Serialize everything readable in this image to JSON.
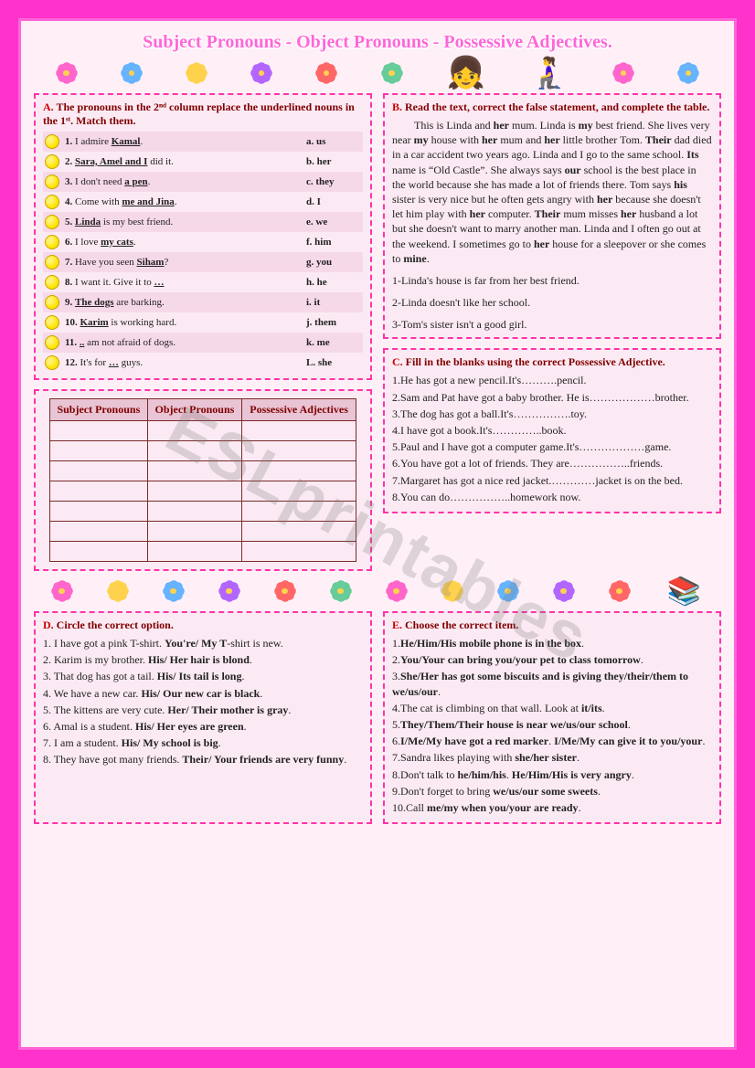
{
  "title": "Subject Pronouns - Object Pronouns - Possessive Adjectives.",
  "watermark": "ESLprintables",
  "flower_colors": [
    "f-pink",
    "f-blue",
    "f-yellow",
    "f-purple",
    "f-red",
    "f-pink",
    "f-green",
    "f-blue",
    "f-yellow",
    "f-purple"
  ],
  "sectionA": {
    "letter": "A.",
    "head": "The pronouns in the 2ⁿᵈ column replace the underlined nouns in the 1ˢᵗ. Match them.",
    "rows": [
      {
        "n": "1.",
        "left_pre": "I admire ",
        "u": "Kamal",
        "left_post": ".",
        "right": "a. us"
      },
      {
        "n": "2.",
        "left_pre": "",
        "u": "Sara, Amel and I",
        "left_post": " did it.",
        "right": "b. her"
      },
      {
        "n": "3.",
        "left_pre": "I don't need ",
        "u": "a pen",
        "left_post": ".",
        "right": "c. they"
      },
      {
        "n": "4.",
        "left_pre": "Come with ",
        "u": "me and Jina",
        "left_post": ".",
        "right": "d. I"
      },
      {
        "n": "5.",
        "left_pre": "",
        "u": "Linda",
        "left_post": " is my best friend.",
        "right": "e. we"
      },
      {
        "n": "6.",
        "left_pre": "I love ",
        "u": "my cats",
        "left_post": ".",
        "right": "f. him"
      },
      {
        "n": "7.",
        "left_pre": "Have you seen ",
        "u": "Siham",
        "left_post": "?",
        "right": "g. you"
      },
      {
        "n": "8.",
        "left_pre": "I want it. Give it to ",
        "u": "…",
        "left_post": "",
        "right": "h. he"
      },
      {
        "n": "9.",
        "left_pre": "",
        "u": "The dogs",
        "left_post": " are barking.",
        "right": "i. it"
      },
      {
        "n": "10.",
        "left_pre": "",
        "u": "Karim",
        "left_post": " is working hard.",
        "right": "j. them"
      },
      {
        "n": "11.",
        "left_pre": "",
        "u": "..",
        "left_post": " am not afraid of dogs.",
        "right": "k. me"
      },
      {
        "n": "12.",
        "left_pre": "It's for ",
        "u": "…",
        "left_post": " guys.",
        "right": "L. she"
      }
    ]
  },
  "pron_table": {
    "headers": [
      "Subject Pronouns",
      "Object Pronouns",
      "Possessive Adjectives"
    ],
    "empty_rows": 7
  },
  "sectionB": {
    "letter": "B.",
    "head": "Read the text, correct the false statement, and complete the table.",
    "passage": "This is Linda and her mum. Linda is my best friend. She lives very near my house with her mum and her little brother Tom. Their dad died in a car accident two years ago. Linda and I go to the same school. Its name is “Old Castle”. She always says our school is the best place in the world because she has made a lot of friends there. Tom says his sister is very nice but he often gets angry with her because she doesn't let him play with her computer. Their mum misses her husband a lot but she doesn't want to marry another man. Linda and I often go out at the weekend. I sometimes go to her house for a sleepover or she comes to mine.",
    "q1": "1-Linda's house is far from her best friend.",
    "q2": "2-Linda doesn't like her school.",
    "q3": "3-Tom's sister isn't a good girl."
  },
  "sectionC": {
    "letter": "C.",
    "head": "Fill in the blanks using the correct Possessive Adjective.",
    "items": [
      "1.He has got a new pencil.It's……….pencil.",
      "2.Sam and Pat have got a baby brother. He is………………brother.",
      "3.The dog has got a ball.It's…………….toy.",
      "4.I have got a book.It's…………..book.",
      "5.Paul and I have got a computer game.It's………………game.",
      "6.You have got a lot of friends. They are……………..friends.",
      "7.Margaret has got a nice red jacket.…………jacket is on the bed.",
      "8.You can do……………..homework now."
    ]
  },
  "sectionD": {
    "letter": "D.",
    "head": "Circle the correct option.",
    "items": [
      "1. I have got a pink T-shirt. You're/ My T-shirt is new.",
      "2. Karim is my brother. His/ Her hair is blond.",
      "3. That dog has got a tail. His/ Its tail is long.",
      "4. We have a new car. His/ Our new car is black.",
      "5. The kittens are very cute. Her/ Their mother is gray.",
      "6. Amal is a student. His/ Her eyes are green.",
      "7. I am a student. His/ My school is big.",
      "8. They have got many friends. Their/ Your friends are very funny."
    ]
  },
  "sectionE": {
    "letter": "E.",
    "head": "Choose the correct item.",
    "items": [
      "1.He/Him/His mobile phone is in the box.",
      "2.You/Your can bring you/your pet to class tomorrow.",
      "3.She/Her has got some biscuits and is giving they/their/them to we/us/our.",
      "4.The cat is climbing on that wall. Look at it/its.",
      "5.They/Them/Their house is near we/us/our school.",
      "6.I/Me/My have got a red marker. I/Me/My can give it to you/your.",
      "7.Sandra likes playing with she/her sister.",
      "8.Don't talk to he/him/his. He/Him/His is very angry.",
      "9.Don't forget to bring we/us/our some sweets.",
      "10.Call me/my when you/your are ready."
    ]
  }
}
